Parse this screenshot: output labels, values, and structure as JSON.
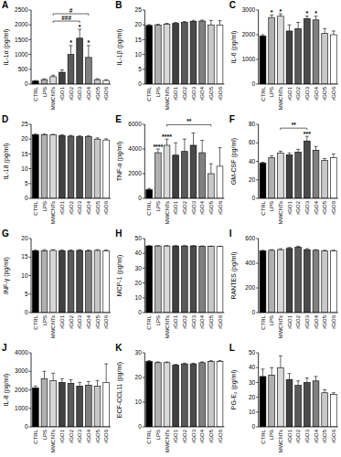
{
  "chart_data": [
    {
      "type": "bar",
      "title": "A",
      "y_label": "IL-1α (pg/ml)",
      "categories": [
        "CTRL",
        "LPS",
        "MWCNTs",
        "rGO1",
        "rGO2",
        "rGO3",
        "rGO4",
        "rGO5",
        "rGO6"
      ],
      "values": [
        100,
        150,
        250,
        400,
        1000,
        1550,
        900,
        150,
        120
      ],
      "errors": [
        20,
        30,
        50,
        80,
        300,
        300,
        400,
        30,
        30
      ],
      "colors": [
        "#000000",
        "#b0b0b0",
        "#d8d8d8",
        "#404040",
        "#5a5a5a",
        "#4a4a4a",
        "#808080",
        "#c8c8c8",
        "#ffffff"
      ],
      "ylim": [
        0,
        2500
      ],
      "yticks": [
        0,
        500,
        1000,
        1500,
        2000,
        2500
      ],
      "annotations": [
        {
          "category": "rGO2",
          "text": "*"
        },
        {
          "category": "rGO3",
          "text": "*"
        },
        {
          "category": "rGO4",
          "text": "*"
        }
      ],
      "brackets": [
        {
          "from": "MWCNTs",
          "to": "rGO3",
          "text": "###"
        },
        {
          "from": "MWCNTs",
          "to": "rGO4",
          "text": "#"
        }
      ]
    },
    {
      "type": "bar",
      "title": "B",
      "y_label": "IL-1β (pg/ml)",
      "categories": [
        "CTRL",
        "LPS",
        "MWCNTs",
        "rGO1",
        "rGO2",
        "rGO3",
        "rGO4",
        "rGO5",
        "rGO6"
      ],
      "values": [
        19.8,
        19.9,
        20.2,
        20.5,
        20.8,
        21.2,
        21.3,
        20,
        19.9
      ],
      "errors": [
        0.3,
        0.3,
        0.3,
        0.3,
        0.3,
        0.3,
        0.3,
        1.5,
        1.5
      ],
      "colors": [
        "#000000",
        "#b0b0b0",
        "#d8d8d8",
        "#404040",
        "#5a5a5a",
        "#4a4a4a",
        "#808080",
        "#c8c8c8",
        "#ffffff"
      ],
      "ylim": [
        0,
        25
      ],
      "yticks": [
        0,
        5,
        10,
        15,
        20,
        25
      ],
      "annotations": [],
      "brackets": []
    },
    {
      "type": "bar",
      "title": "C",
      "y_label": "IL-6 (pg/ml)",
      "categories": [
        "CTRL",
        "LPS",
        "MWCNTs",
        "rGO1",
        "rGO2",
        "rGO3",
        "rGO4",
        "rGO5",
        "rGO6"
      ],
      "values": [
        1950,
        2700,
        2750,
        2150,
        2250,
        2650,
        2600,
        2050,
        2000
      ],
      "errors": [
        50,
        100,
        100,
        250,
        250,
        100,
        150,
        200,
        150
      ],
      "colors": [
        "#000000",
        "#b0b0b0",
        "#d8d8d8",
        "#404040",
        "#5a5a5a",
        "#4a4a4a",
        "#808080",
        "#c8c8c8",
        "#ffffff"
      ],
      "ylim": [
        0,
        3000
      ],
      "yticks": [
        0,
        1000,
        2000,
        3000
      ],
      "annotations": [
        {
          "category": "LPS",
          "text": "*"
        },
        {
          "category": "MWCNTs",
          "text": "*"
        },
        {
          "category": "rGO3",
          "text": "*"
        },
        {
          "category": "rGO4",
          "text": "*"
        }
      ],
      "brackets": []
    },
    {
      "type": "bar",
      "title": "D",
      "y_label": "IL-18 (pg/ml)",
      "categories": [
        "CTRL",
        "LPS",
        "MWCNTs",
        "rGO1",
        "rGO2",
        "rGO3",
        "rGO4",
        "rGO5",
        "rGO6"
      ],
      "values": [
        21.5,
        21.5,
        21.4,
        21.2,
        21,
        20.8,
        20.8,
        20,
        19.7
      ],
      "errors": [
        0.2,
        0.2,
        0.2,
        0.3,
        0.3,
        0.3,
        0.3,
        0.4,
        0.4
      ],
      "colors": [
        "#000000",
        "#b0b0b0",
        "#d8d8d8",
        "#404040",
        "#5a5a5a",
        "#4a4a4a",
        "#808080",
        "#c8c8c8",
        "#ffffff"
      ],
      "ylim": [
        0,
        25
      ],
      "yticks": [
        0,
        5,
        10,
        15,
        20,
        25
      ],
      "annotations": [],
      "brackets": []
    },
    {
      "type": "bar",
      "title": "E",
      "y_label": "TNF-α (pg/ml)",
      "categories": [
        "CTRL",
        "LPS",
        "MWCNTs",
        "rGO1",
        "rGO2",
        "rGO3",
        "rGO4",
        "rGO5",
        "rGO6"
      ],
      "values": [
        700,
        3700,
        4300,
        3500,
        3800,
        4300,
        3700,
        2000,
        2600
      ],
      "errors": [
        100,
        300,
        500,
        1000,
        1000,
        1000,
        1000,
        800,
        1500
      ],
      "colors": [
        "#000000",
        "#b0b0b0",
        "#d8d8d8",
        "#404040",
        "#5a5a5a",
        "#4a4a4a",
        "#808080",
        "#c8c8c8",
        "#ffffff"
      ],
      "ylim": [
        0,
        6000
      ],
      "yticks": [
        0,
        2000,
        4000,
        6000
      ],
      "annotations": [
        {
          "category": "LPS",
          "text": "****"
        },
        {
          "category": "MWCNTs",
          "text": "****"
        }
      ],
      "brackets": [
        {
          "from": "MWCNTs",
          "to": "rGO5",
          "text": "**"
        }
      ]
    },
    {
      "type": "bar",
      "title": "F",
      "y_label": "GM-CSF (pg/ml)",
      "categories": [
        "CTRL",
        "LPS",
        "MWCNTs",
        "rGO1",
        "rGO2",
        "rGO3",
        "rGO4",
        "rGO5",
        "rGO6"
      ],
      "values": [
        38,
        44,
        49,
        47,
        50,
        62,
        52,
        41,
        44
      ],
      "errors": [
        1,
        2,
        2,
        2,
        3,
        5,
        4,
        2,
        4
      ],
      "colors": [
        "#000000",
        "#b0b0b0",
        "#d8d8d8",
        "#404040",
        "#5a5a5a",
        "#4a4a4a",
        "#808080",
        "#c8c8c8",
        "#ffffff"
      ],
      "ylim": [
        0,
        80
      ],
      "yticks": [
        0,
        20,
        40,
        60,
        80
      ],
      "annotations": [
        {
          "category": "rGO3",
          "text": "***"
        }
      ],
      "brackets": [
        {
          "from": "MWCNTs",
          "to": "rGO3",
          "text": "**"
        }
      ]
    },
    {
      "type": "bar",
      "title": "G",
      "y_label": "INF-γ (pg/ml)",
      "categories": [
        "CTRL",
        "LPS",
        "MWCNTs",
        "rGO1",
        "rGO2",
        "rGO3",
        "rGO4",
        "rGO5",
        "rGO6"
      ],
      "values": [
        16.7,
        16.7,
        16.8,
        16.7,
        16.7,
        16.8,
        16.7,
        16.8,
        16.7
      ],
      "errors": [
        0.2,
        0.3,
        0.2,
        0.2,
        0.2,
        0.2,
        0.2,
        0.2,
        0.2
      ],
      "colors": [
        "#000000",
        "#b0b0b0",
        "#d8d8d8",
        "#404040",
        "#5a5a5a",
        "#4a4a4a",
        "#808080",
        "#c8c8c8",
        "#ffffff"
      ],
      "ylim": [
        0,
        20
      ],
      "yticks": [
        0,
        5,
        10,
        15,
        20
      ],
      "annotations": [],
      "brackets": []
    },
    {
      "type": "bar",
      "title": "H",
      "y_label": "MCP-1 (pg/ml)",
      "categories": [
        "CTRL",
        "LPS",
        "MWCNTs",
        "rGO1",
        "rGO2",
        "rGO3",
        "rGO4",
        "rGO5",
        "rGO6"
      ],
      "values": [
        45,
        45,
        45,
        45,
        45,
        45,
        44.8,
        44.7,
        44.6
      ],
      "errors": [
        0.2,
        0.2,
        0.2,
        0.2,
        0.2,
        0.2,
        0.2,
        0.2,
        0.2
      ],
      "colors": [
        "#000000",
        "#b0b0b0",
        "#d8d8d8",
        "#404040",
        "#5a5a5a",
        "#4a4a4a",
        "#808080",
        "#c8c8c8",
        "#ffffff"
      ],
      "ylim": [
        0,
        50
      ],
      "yticks": [
        0,
        10,
        20,
        30,
        40,
        50
      ],
      "annotations": [],
      "brackets": []
    },
    {
      "type": "bar",
      "title": "I",
      "y_label": "RANTES (pg/ml)",
      "categories": [
        "CTRL",
        "LPS",
        "MWCNTs",
        "rGO1",
        "rGO2",
        "rGO3",
        "rGO4",
        "rGO5",
        "rGO6"
      ],
      "values": [
        500,
        505,
        510,
        520,
        530,
        510,
        505,
        500,
        500
      ],
      "errors": [
        5,
        5,
        8,
        8,
        8,
        8,
        5,
        5,
        5
      ],
      "colors": [
        "#000000",
        "#b0b0b0",
        "#d8d8d8",
        "#404040",
        "#5a5a5a",
        "#4a4a4a",
        "#808080",
        "#c8c8c8",
        "#ffffff"
      ],
      "ylim": [
        0,
        600
      ],
      "yticks": [
        0,
        200,
        400,
        600
      ],
      "annotations": [],
      "brackets": []
    },
    {
      "type": "bar",
      "title": "J",
      "y_label": "IL-8 (pg/ml)",
      "categories": [
        "CTRL",
        "LPS",
        "MWCNTs",
        "rGO1",
        "rGO2",
        "rGO3",
        "rGO4",
        "rGO5",
        "rGO6"
      ],
      "values": [
        2100,
        2600,
        2500,
        2400,
        2350,
        2200,
        2250,
        2200,
        2400
      ],
      "errors": [
        100,
        400,
        400,
        200,
        200,
        200,
        200,
        300,
        1000
      ],
      "colors": [
        "#000000",
        "#b0b0b0",
        "#d8d8d8",
        "#404040",
        "#5a5a5a",
        "#4a4a4a",
        "#808080",
        "#c8c8c8",
        "#ffffff"
      ],
      "ylim": [
        0,
        4000
      ],
      "yticks": [
        0,
        1000,
        2000,
        3000,
        4000
      ],
      "annotations": [],
      "brackets": []
    },
    {
      "type": "bar",
      "title": "K",
      "y_label": "ECF-CCL11 (pg/ml)",
      "categories": [
        "CTRL",
        "LPS",
        "MWCNTs",
        "rGO1",
        "rGO2",
        "rGO3",
        "rGO4",
        "rGO5",
        "rGO6"
      ],
      "values": [
        26.5,
        26,
        26,
        25,
        25.5,
        25.5,
        26,
        26.5,
        26.5
      ],
      "errors": [
        0.3,
        0.3,
        0.3,
        0.3,
        0.3,
        0.3,
        0.3,
        0.3,
        0.3
      ],
      "colors": [
        "#000000",
        "#b0b0b0",
        "#d8d8d8",
        "#404040",
        "#5a5a5a",
        "#4a4a4a",
        "#808080",
        "#c8c8c8",
        "#ffffff"
      ],
      "ylim": [
        0,
        30
      ],
      "yticks": [
        0,
        10,
        20,
        30
      ],
      "annotations": [],
      "brackets": []
    },
    {
      "type": "bar",
      "title": "L",
      "y_label": "PG-E₂ (pg/ml)",
      "categories": [
        "CTRL",
        "LPS",
        "MWCNTs",
        "rGO1",
        "rGO2",
        "rGO3",
        "rGO4",
        "rGO5",
        "rGO6"
      ],
      "values": [
        34,
        35,
        40,
        32,
        28,
        30,
        31,
        23,
        22
      ],
      "errors": [
        5,
        5,
        8,
        4,
        3,
        3,
        3,
        2,
        1
      ],
      "colors": [
        "#000000",
        "#b0b0b0",
        "#d8d8d8",
        "#404040",
        "#5a5a5a",
        "#4a4a4a",
        "#808080",
        "#c8c8c8",
        "#ffffff"
      ],
      "ylim": [
        0,
        50
      ],
      "yticks": [
        0,
        10,
        20,
        30,
        40,
        50
      ],
      "annotations": [],
      "brackets": []
    }
  ]
}
